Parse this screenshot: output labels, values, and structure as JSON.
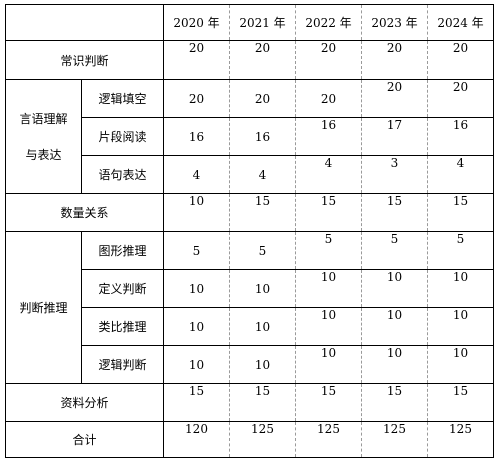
{
  "header": {
    "corner": "",
    "years": [
      "2020 年",
      "2021 年",
      "2022 年",
      "2023 年",
      "2024 年"
    ]
  },
  "rows": {
    "common_sense": {
      "label": "常识判断",
      "values": [
        "20",
        "20",
        "20",
        "20",
        "20"
      ]
    },
    "language": {
      "label_line1": "言语理解",
      "label_line2": "与表达",
      "logic_fill": {
        "label": "逻辑填空",
        "values": [
          "20",
          "20",
          "20",
          "20",
          "20"
        ]
      },
      "passage_reading": {
        "label": "片段阅读",
        "values": [
          "16",
          "16",
          "16",
          "17",
          "16"
        ]
      },
      "sentence_expression": {
        "label": "语句表达",
        "values": [
          "4",
          "4",
          "4",
          "3",
          "4"
        ]
      }
    },
    "quantitative": {
      "label": "数量关系",
      "values": [
        "10",
        "15",
        "15",
        "15",
        "15"
      ]
    },
    "judgement": {
      "label": "判断推理",
      "graphic_reasoning": {
        "label": "图形推理",
        "values": [
          "5",
          "5",
          "5",
          "5",
          "5"
        ]
      },
      "definition_judgement": {
        "label": "定义判断",
        "values": [
          "10",
          "10",
          "10",
          "10",
          "10"
        ]
      },
      "analogy_reasoning": {
        "label": "类比推理",
        "values": [
          "10",
          "10",
          "10",
          "10",
          "10"
        ]
      },
      "logical_judgement": {
        "label": "逻辑判断",
        "values": [
          "10",
          "10",
          "10",
          "10",
          "10"
        ]
      }
    },
    "data_analysis": {
      "label": "资料分析",
      "values": [
        "15",
        "15",
        "15",
        "15",
        "15"
      ]
    },
    "total": {
      "label": "合计",
      "values": [
        "120",
        "125",
        "125",
        "125",
        "125"
      ]
    }
  }
}
